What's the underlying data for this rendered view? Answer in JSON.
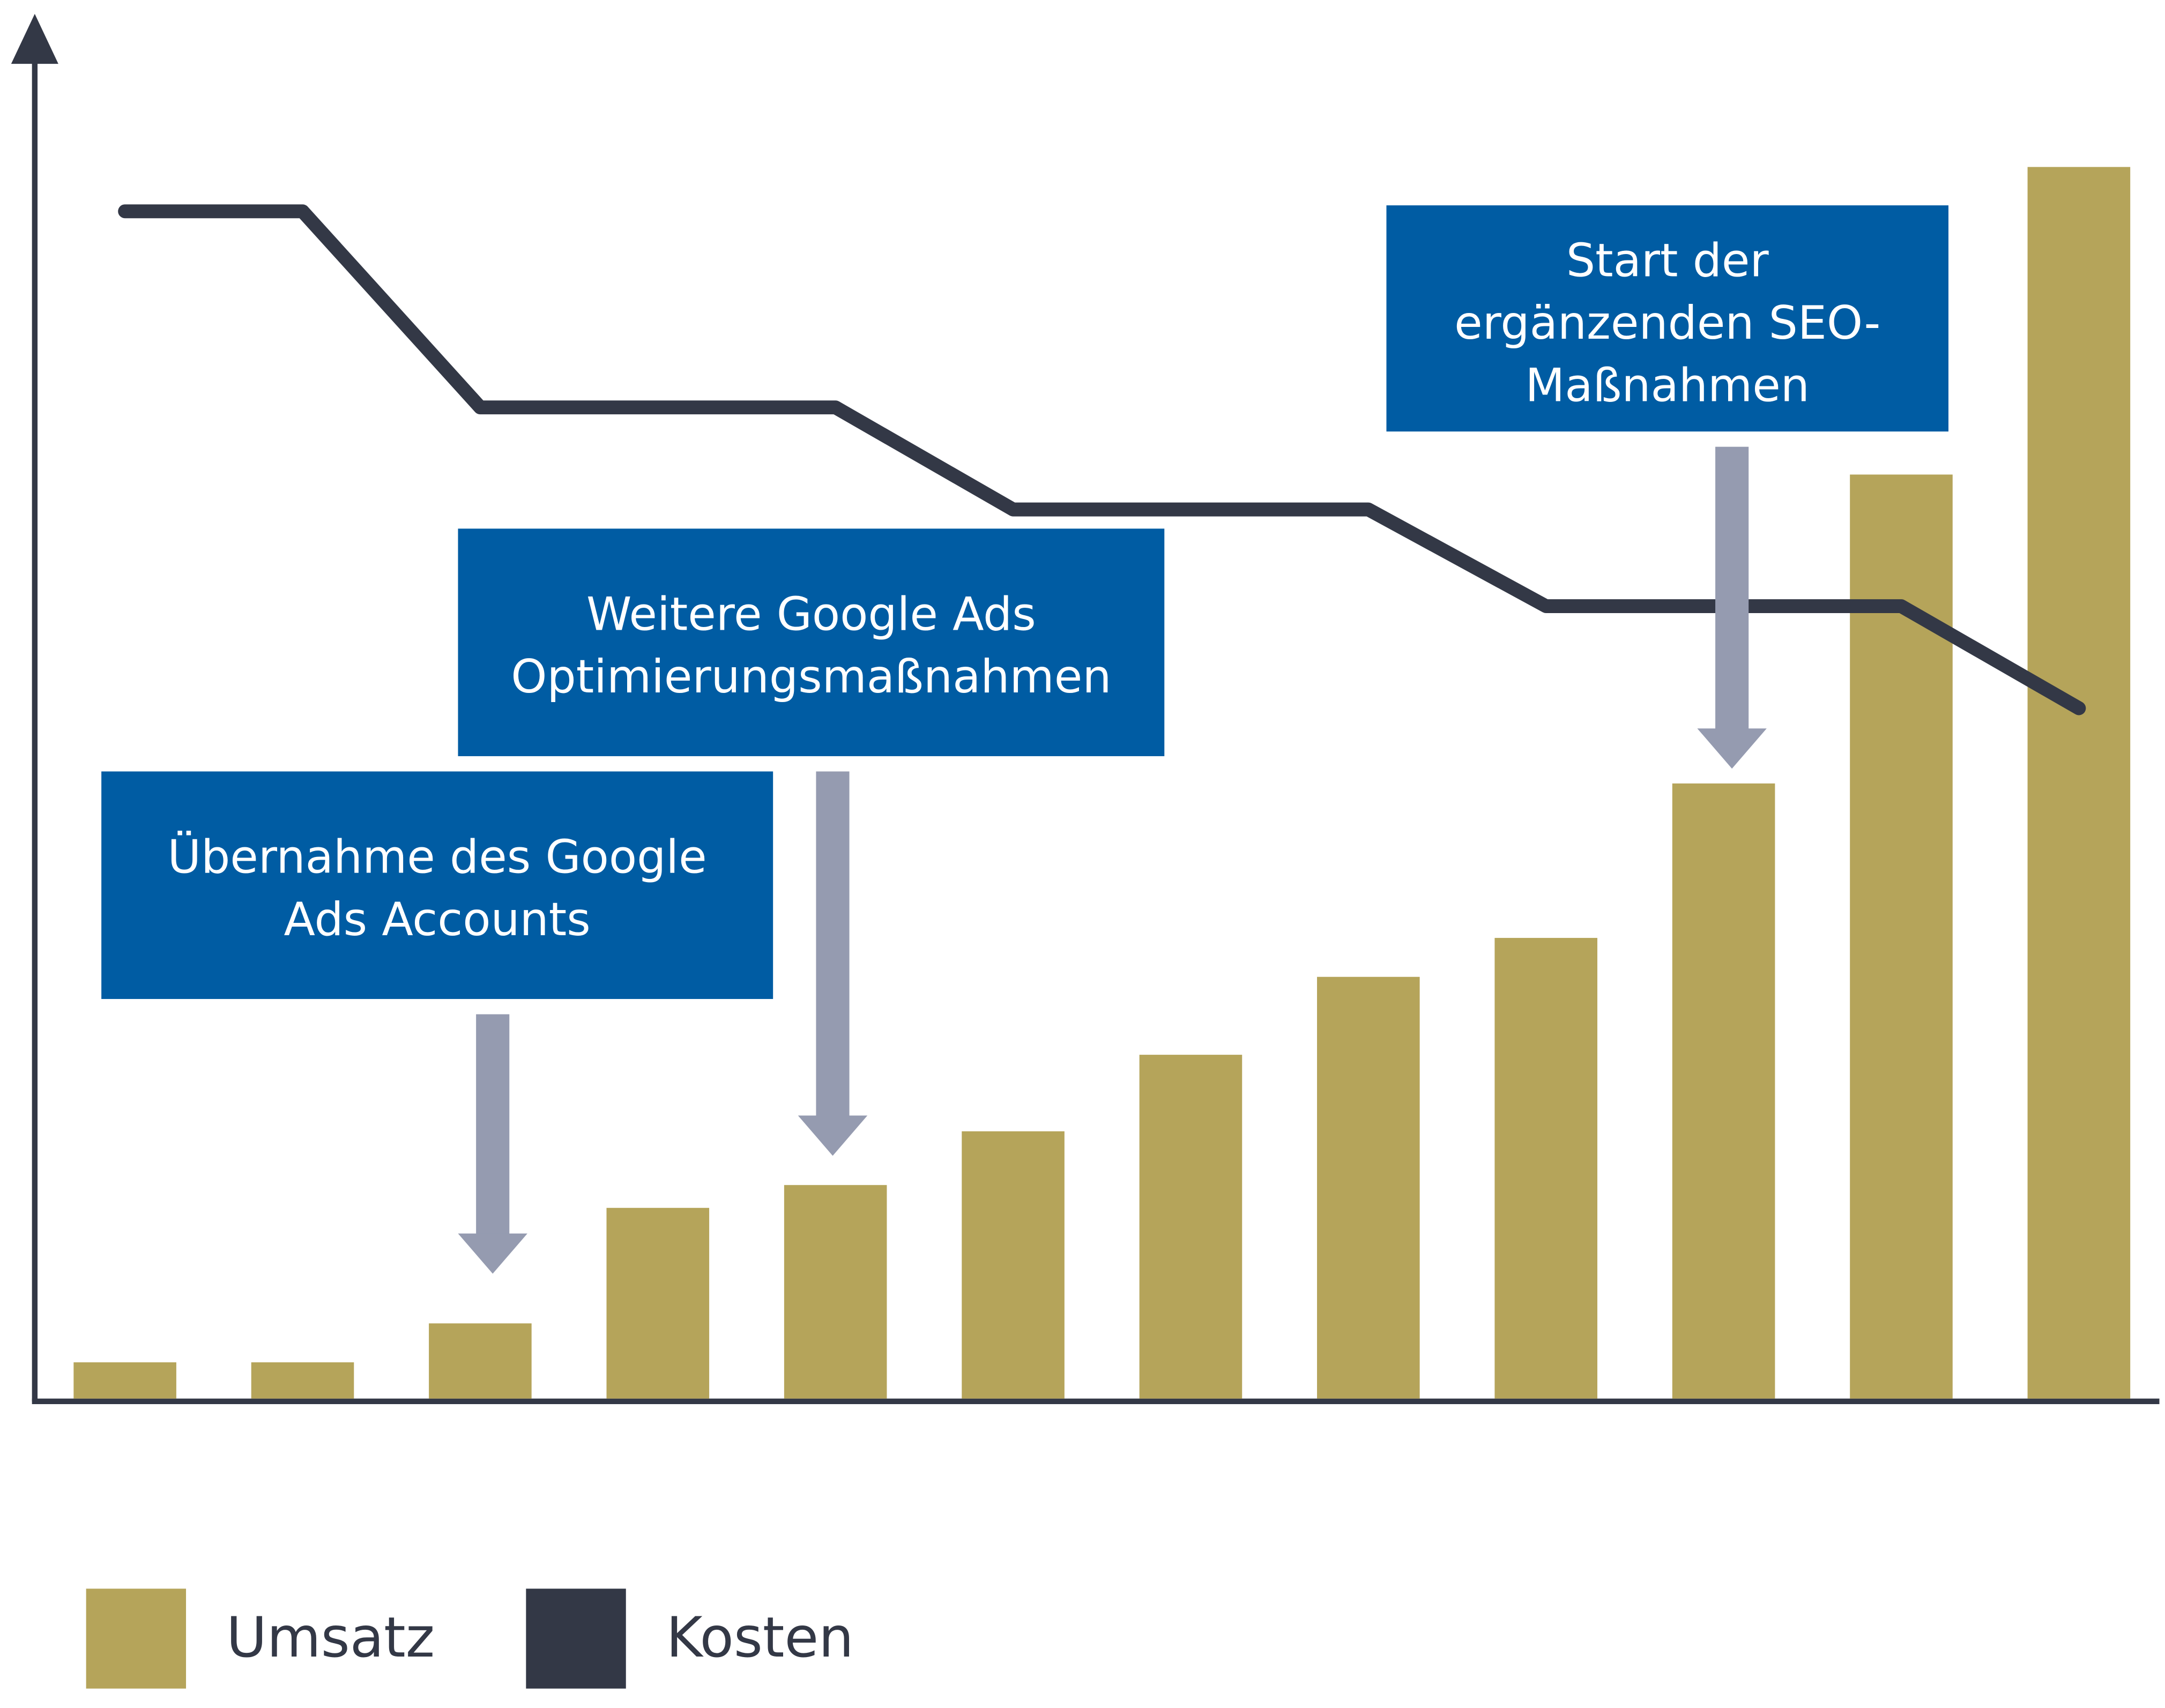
{
  "chart_data": {
    "type": "bar",
    "categories": [
      null,
      null,
      null,
      null,
      null,
      null,
      null,
      null,
      null,
      null,
      null,
      null
    ],
    "ylim": [
      0,
      100
    ],
    "series": [
      {
        "name": "Umsatz",
        "type": "bar",
        "color": "#b5a45a",
        "values": [
          2.7,
          2.7,
          5.6,
          14.2,
          15.9,
          19.9,
          25.6,
          31.4,
          34.3,
          45.8,
          68.8,
          91.7
        ]
      },
      {
        "name": "Kosten",
        "type": "line",
        "color": "#333846",
        "values": [
          88.4,
          88.4,
          73.8,
          73.8,
          73.8,
          66.2,
          66.2,
          66.2,
          59.0,
          59.0,
          59.0,
          51.4
        ]
      }
    ],
    "annotations": [
      {
        "lines": [
          "Übernahme des Google",
          "Ads Accounts"
        ]
      },
      {
        "lines": [
          "Weitere Google Ads",
          "Optimierungsmaßnahmen"
        ]
      },
      {
        "lines": [
          "Start der",
          "ergänzenden SEO-",
          "Maßnahmen"
        ]
      }
    ],
    "annotation_color": "#005ca3",
    "arrow_color": "#959bb0"
  }
}
